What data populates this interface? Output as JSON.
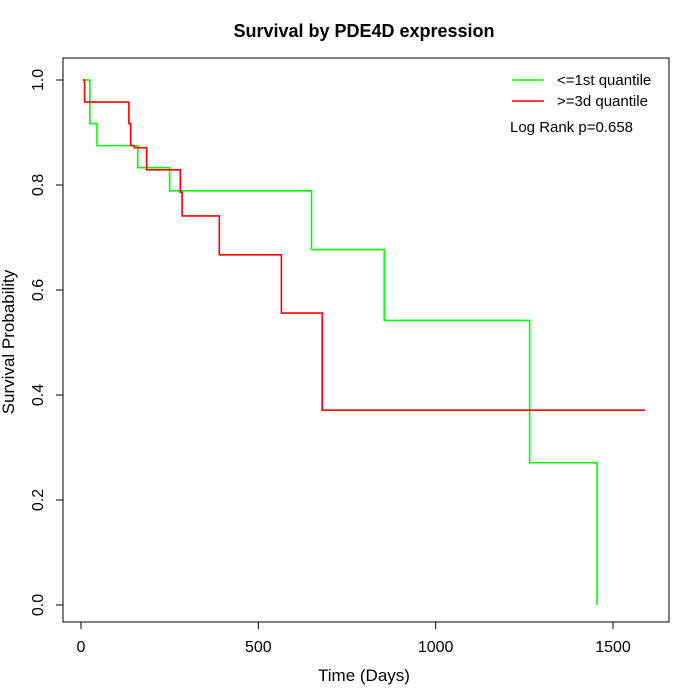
{
  "chart_data": {
    "type": "line",
    "step": true,
    "title": "Survival by PDE4D expression",
    "xlabel": "Time (Days)",
    "ylabel": "Survival Probability",
    "xlim": [
      0,
      1600
    ],
    "ylim": [
      0,
      1.0
    ],
    "xticks": [
      0,
      500,
      1000,
      1500
    ],
    "yticks": [
      0.0,
      0.2,
      0.4,
      0.6,
      0.8,
      1.0
    ],
    "xtick_labels": [
      "0",
      "500",
      "1000",
      "1500"
    ],
    "ytick_labels": [
      "0.0",
      "0.2",
      "0.4",
      "0.6",
      "0.8",
      "1.0"
    ],
    "grid": false,
    "legend_position": "top-right",
    "annotation": "Log Rank p=0.658",
    "series": [
      {
        "name": "<=1st quantile",
        "color": "#00ff00",
        "x": [
          5,
          25,
          45,
          160,
          250,
          650,
          855,
          1265,
          1455,
          1455
        ],
        "y": [
          1.0,
          0.917,
          0.875,
          0.833,
          0.789,
          0.677,
          0.542,
          0.271,
          0.271,
          0.0
        ]
      },
      {
        "name": ">=3d quantile",
        "color": "#ff0000",
        "x": [
          5,
          10,
          135,
          140,
          150,
          185,
          280,
          285,
          390,
          565,
          680,
          1590
        ],
        "y": [
          1.0,
          0.958,
          0.917,
          0.875,
          0.871,
          0.829,
          0.786,
          0.741,
          0.667,
          0.556,
          0.371,
          0.371
        ]
      }
    ]
  }
}
